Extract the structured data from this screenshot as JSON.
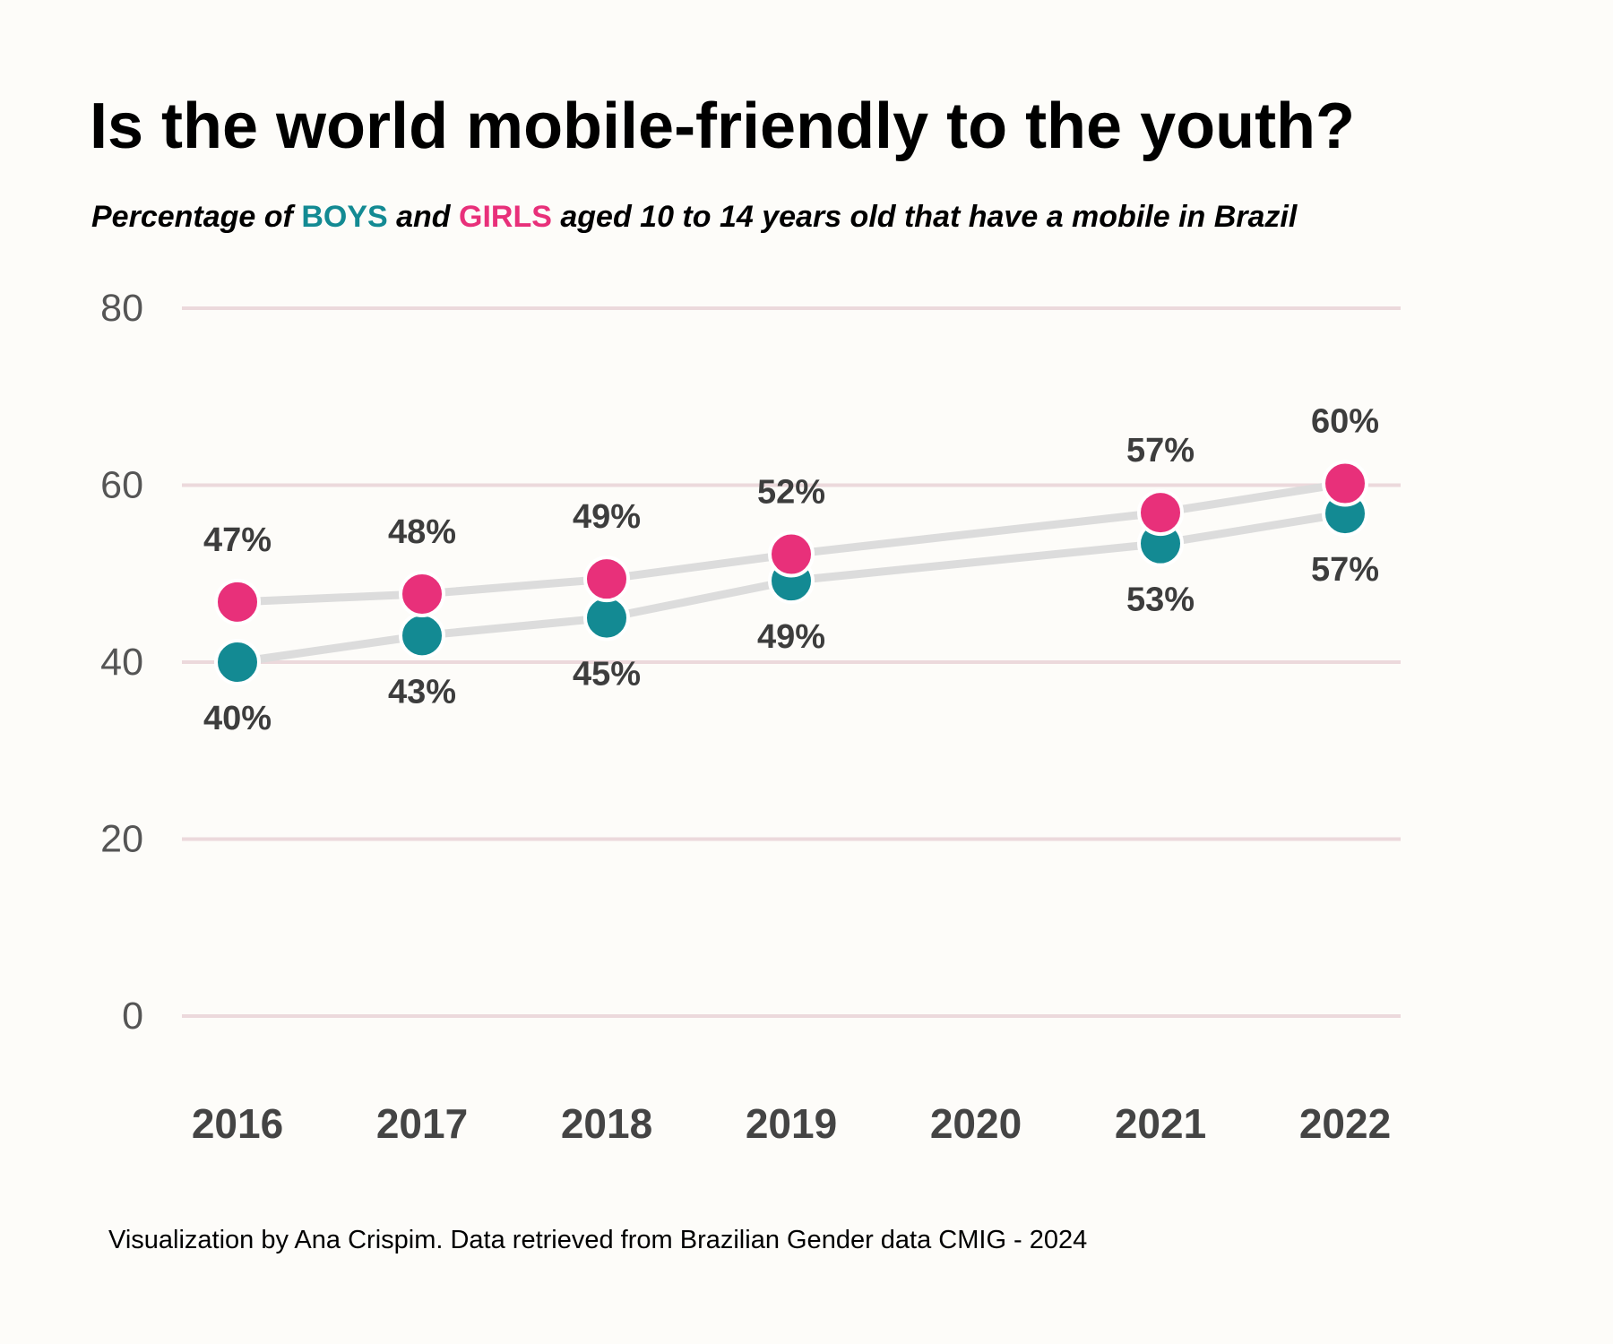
{
  "title": "Is the world mobile-friendly to the youth?",
  "subtitle": {
    "prefix": "Percentage of ",
    "boys": "BOYS",
    "middle": " and ",
    "girls": "GIRLS",
    "suffix": " aged 10 to 14 years old that have a mobile in Brazil"
  },
  "caption": "Visualization by Ana Crispim. Data retrieved from Brazilian Gender data CMIG - 2024",
  "colors": {
    "boys": "#138a93",
    "girls": "#e8307a",
    "connector": "#dcdcdc",
    "grid": "#ecd9dc",
    "background": "#fdfcf9",
    "label": "#3d3d3d",
    "tick": "#555555"
  },
  "chart_data": {
    "type": "scatter",
    "x": [
      2016,
      2017,
      2018,
      2019,
      2021,
      2022
    ],
    "categories": [
      "2016",
      "2017",
      "2018",
      "2019",
      "2020",
      "2021",
      "2022"
    ],
    "ylim": [
      -8,
      84
    ],
    "yticks": [
      "0",
      "20",
      "40",
      "60",
      "80"
    ],
    "grid": true,
    "series": [
      {
        "name": "BOYS",
        "values": [
          40,
          43,
          45,
          49.2,
          53.4,
          56.8
        ],
        "labels": [
          "40%",
          "43%",
          "45%",
          "49%",
          "53%",
          "57%"
        ]
      },
      {
        "name": "GIRLS",
        "values": [
          46.8,
          47.7,
          49.4,
          52.2,
          56.9,
          60.2
        ],
        "labels": [
          "47%",
          "48%",
          "49%",
          "52%",
          "57%",
          "60%"
        ]
      }
    ]
  }
}
